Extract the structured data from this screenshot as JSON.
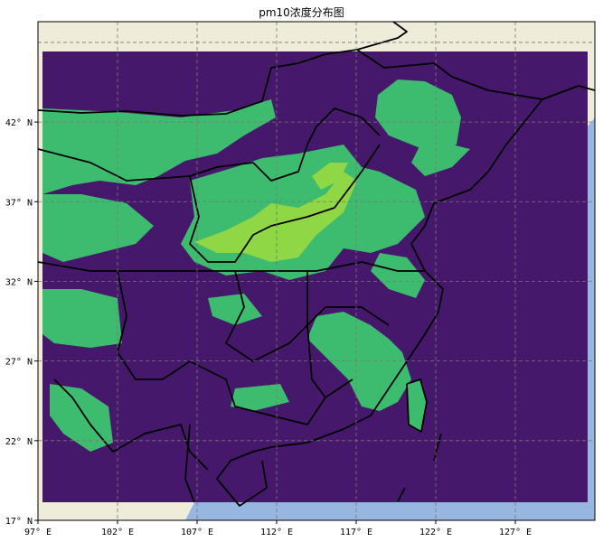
{
  "title": "pm10浓度分布图",
  "map": {
    "lon_range": [
      97,
      132
    ],
    "lat_range": [
      17,
      48.3
    ],
    "lon_ticks": [
      "97° E",
      "102° E",
      "107° E",
      "112° E",
      "117° E",
      "122° E",
      "127° E"
    ],
    "lat_ticks": [
      "17° N",
      "22° N",
      "27° N",
      "32° N",
      "37° N",
      "42° N"
    ],
    "lon_tick_values": [
      97,
      102,
      107,
      112,
      117,
      122,
      127,
      132
    ],
    "lat_tick_values": [
      17,
      22,
      27,
      32,
      37,
      42,
      47
    ],
    "gridlines": true,
    "colors": {
      "land": "#efedd9",
      "ocean": "#97b6e0",
      "low": "#46186b",
      "mid": "#3dbb6e",
      "high": "#8fd744",
      "border": "#000000"
    }
  }
}
